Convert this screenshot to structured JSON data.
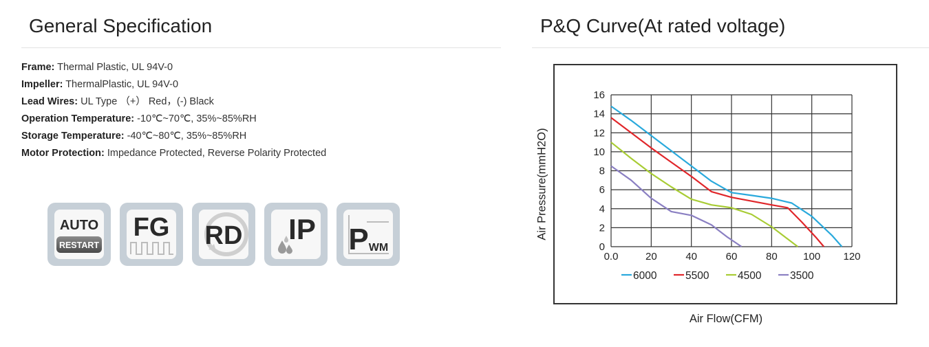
{
  "spec": {
    "title": "General Specification",
    "items": [
      {
        "label": "Frame:",
        "value": " Thermal Plastic, UL 94V-0"
      },
      {
        "label": "Impeller:",
        "value": " ThermalPlastic, UL 94V-0"
      },
      {
        "label": "Lead Wires:",
        "value": " UL Type （+） Red，(-) Black"
      },
      {
        "label": "Operation Temperature:",
        "value": " -10℃~70℃, 35%~85%RH"
      },
      {
        "label": "Storage Temperature:",
        "value": " -40℃~80℃, 35%~85%RH"
      },
      {
        "label": "Motor Protection:",
        "value": " Impedance Protected, Reverse Polarity Protected"
      }
    ],
    "badges": [
      {
        "name": "auto-restart-icon",
        "top": "AUTO",
        "bottom": "RESTART"
      },
      {
        "name": "fg-icon",
        "text": "FG"
      },
      {
        "name": "rd-icon",
        "text": "RD"
      },
      {
        "name": "ip-icon",
        "text": "IP"
      },
      {
        "name": "pwm-icon",
        "text": "P",
        "sub": "WM"
      }
    ]
  },
  "pq": {
    "title": "P&Q Curve(At rated voltage)"
  },
  "chart_data": {
    "type": "line",
    "title": "",
    "xlabel": "Air Flow(CFM)",
    "ylabel": "Air Pressure(mmH2O)",
    "xlim": [
      0,
      120
    ],
    "ylim": [
      0,
      16
    ],
    "xticks": [
      "0.0",
      "20",
      "40",
      "60",
      "80",
      "100",
      "120"
    ],
    "yticks": [
      "0",
      "2",
      "4",
      "6",
      "8",
      "10",
      "12",
      "14",
      "16"
    ],
    "grid": true,
    "legend_position": "bottom",
    "series": [
      {
        "name": "6000",
        "color": "#29a9dc",
        "points": [
          [
            0,
            14.8
          ],
          [
            10,
            13.3
          ],
          [
            20,
            11.7
          ],
          [
            30,
            10.1
          ],
          [
            40,
            8.5
          ],
          [
            50,
            6.9
          ],
          [
            60,
            5.7
          ],
          [
            70,
            5.4
          ],
          [
            80,
            5.1
          ],
          [
            90,
            4.6
          ],
          [
            100,
            3.2
          ],
          [
            110,
            1.2
          ],
          [
            115,
            0
          ]
        ]
      },
      {
        "name": "5500",
        "color": "#e0262a",
        "points": [
          [
            0,
            13.6
          ],
          [
            10,
            12.0
          ],
          [
            20,
            10.4
          ],
          [
            30,
            8.9
          ],
          [
            40,
            7.4
          ],
          [
            50,
            5.8
          ],
          [
            60,
            5.2
          ],
          [
            70,
            4.8
          ],
          [
            80,
            4.4
          ],
          [
            88,
            4.1
          ],
          [
            95,
            2.6
          ],
          [
            102,
            1.0
          ],
          [
            106,
            0
          ]
        ]
      },
      {
        "name": "4500",
        "color": "#a8cc34",
        "points": [
          [
            0,
            11.0
          ],
          [
            10,
            9.3
          ],
          [
            20,
            7.7
          ],
          [
            30,
            6.3
          ],
          [
            40,
            5.0
          ],
          [
            50,
            4.4
          ],
          [
            60,
            4.1
          ],
          [
            70,
            3.4
          ],
          [
            80,
            2.1
          ],
          [
            88,
            0.8
          ],
          [
            93,
            0
          ]
        ]
      },
      {
        "name": "3500",
        "color": "#8a7fc2",
        "points": [
          [
            0,
            8.5
          ],
          [
            10,
            7.0
          ],
          [
            20,
            5.1
          ],
          [
            30,
            3.7
          ],
          [
            40,
            3.3
          ],
          [
            50,
            2.3
          ],
          [
            58,
            1.0
          ],
          [
            65,
            0
          ]
        ]
      }
    ]
  }
}
